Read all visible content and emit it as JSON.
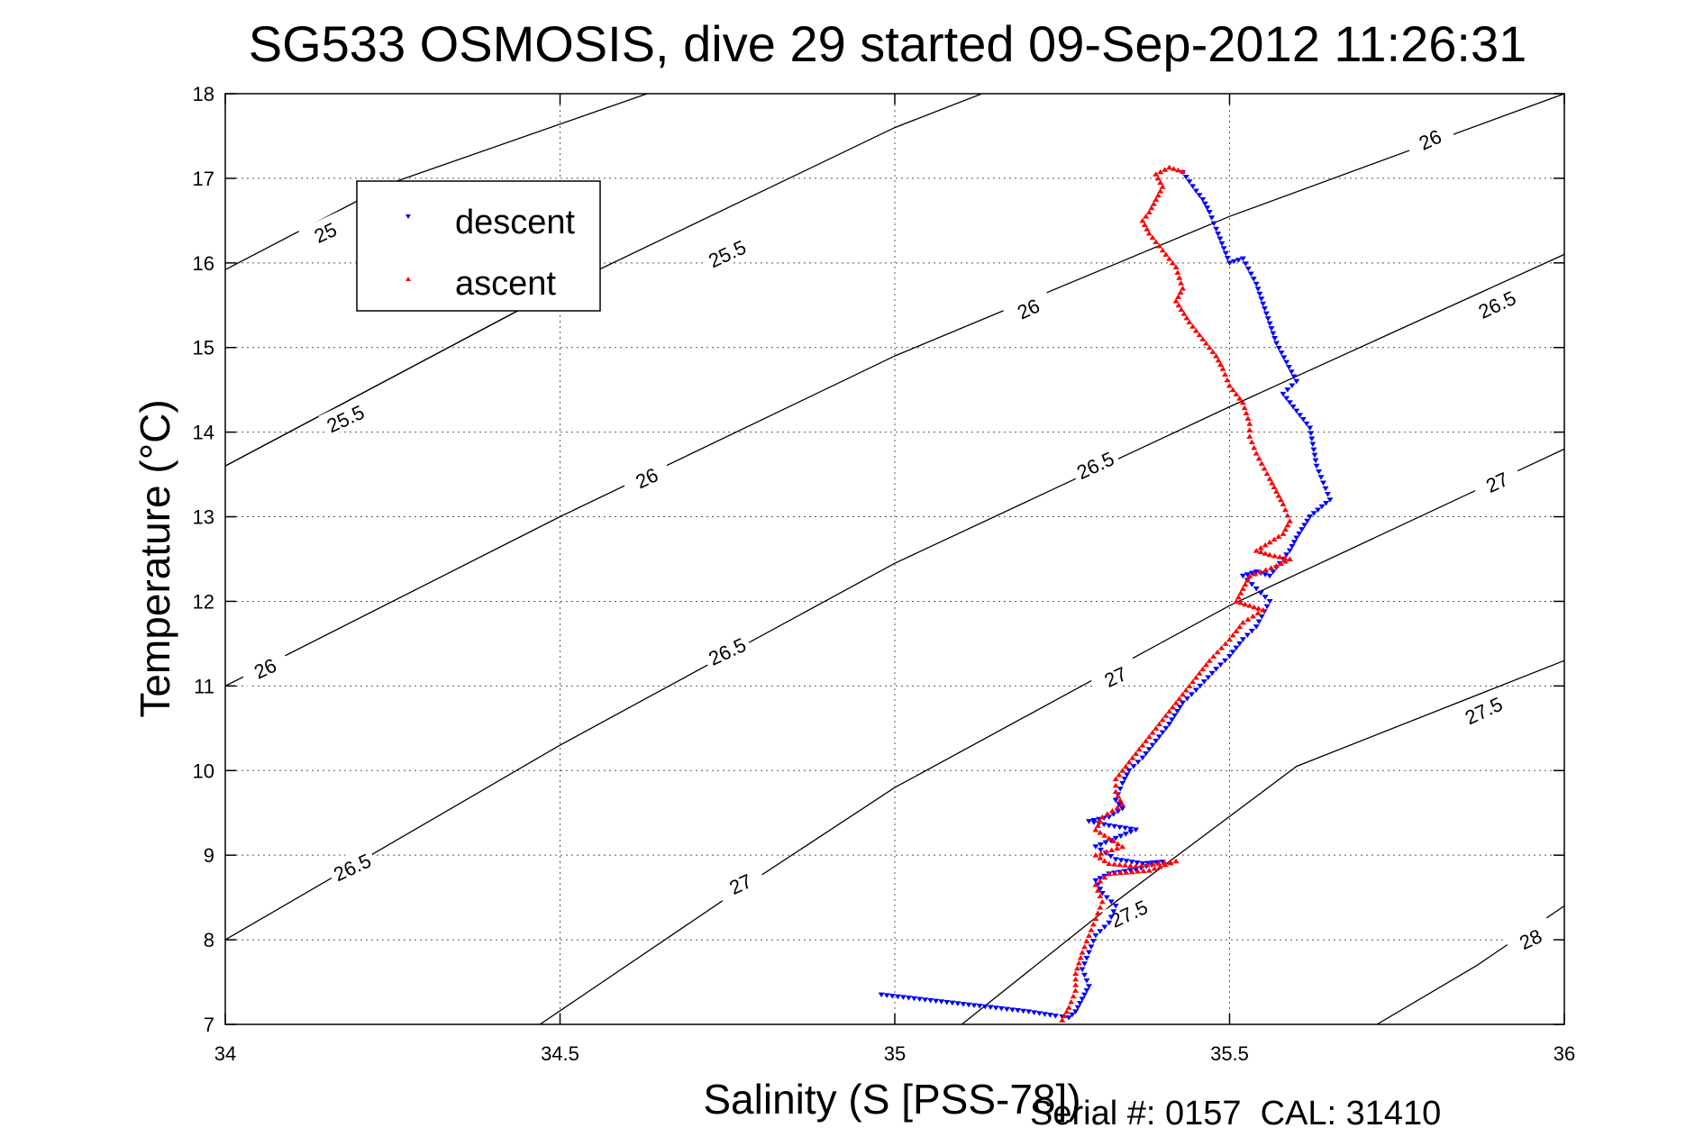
{
  "chart_data": {
    "type": "scatter",
    "title": "SG533 OSMOSIS, dive 29 started 09-Sep-2012 11:26:31",
    "xlabel": "Salinity (S [PSS-78])",
    "ylabel": "Temperature (°C)",
    "footer": "Serial #: 0157  CAL: 31410",
    "xlim": [
      34,
      36
    ],
    "ylim": [
      7,
      18
    ],
    "xticks": [
      34,
      34.5,
      35,
      35.5,
      36
    ],
    "xtick_labels": [
      "34",
      "34.5",
      "35",
      "35.5",
      "36"
    ],
    "yticks": [
      7,
      8,
      9,
      10,
      11,
      12,
      13,
      14,
      15,
      16,
      17,
      18
    ],
    "ytick_labels": [
      "7",
      "8",
      "9",
      "10",
      "11",
      "12",
      "13",
      "14",
      "15",
      "16",
      "17",
      "18"
    ],
    "grid": true,
    "legend_position": "top-left",
    "legend": [
      {
        "label": "descent",
        "marker": "down-triangle",
        "color": "#0000ff"
      },
      {
        "label": "ascent",
        "marker": "up-triangle",
        "color": "#ff0000"
      }
    ],
    "contours": [
      {
        "label": "25",
        "points": [
          [
            34,
            15.92
          ],
          [
            34.25,
            16.95
          ],
          [
            34.63,
            18.0
          ]
        ],
        "label_at": [
          34.15,
          16.35
        ]
      },
      {
        "label": "25.5",
        "points": [
          [
            34,
            13.6
          ],
          [
            34.5,
            15.7
          ],
          [
            35.0,
            17.6
          ],
          [
            35.13,
            18.0
          ]
        ],
        "label_at": [
          34.75,
          16.1
        ]
      },
      {
        "label": "25.5",
        "points": [
          [
            34,
            13.6
          ],
          [
            34.5,
            15.7
          ]
        ],
        "label_at": [
          34.18,
          14.15
        ]
      },
      {
        "label": "26",
        "points": [
          [
            34,
            11.0
          ],
          [
            34.5,
            13.0
          ],
          [
            35.0,
            14.9
          ],
          [
            35.5,
            16.55
          ],
          [
            36.0,
            18.0
          ]
        ],
        "label_at": [
          34.06,
          11.2
        ]
      },
      {
        "label": "26",
        "points": [],
        "label_at": [
          34.63,
          13.45
        ]
      },
      {
        "label": "26",
        "points": [],
        "label_at": [
          35.2,
          15.45
        ]
      },
      {
        "label": "26",
        "points": [],
        "label_at": [
          35.8,
          17.45
        ]
      },
      {
        "label": "26.5",
        "points": [
          [
            34,
            8.0
          ],
          [
            34.5,
            10.3
          ],
          [
            35.0,
            12.45
          ],
          [
            35.5,
            14.3
          ],
          [
            36.0,
            16.1
          ]
        ],
        "label_at": [
          34.19,
          8.85
        ]
      },
      {
        "label": "26.5",
        "points": [],
        "label_at": [
          34.75,
          11.4
        ]
      },
      {
        "label": "26.5",
        "points": [],
        "label_at": [
          35.3,
          13.6
        ]
      },
      {
        "label": "26.5",
        "points": [],
        "label_at": [
          35.9,
          15.5
        ]
      },
      {
        "label": "27",
        "points": [
          [
            34.47,
            7.0
          ],
          [
            34.75,
            8.5
          ],
          [
            35.0,
            9.8
          ],
          [
            35.5,
            11.95
          ],
          [
            36.0,
            13.8
          ]
        ],
        "label_at": [
          34.77,
          8.65
        ]
      },
      {
        "label": "27",
        "points": [],
        "label_at": [
          35.33,
          11.1
        ]
      },
      {
        "label": "27",
        "points": [],
        "label_at": [
          35.9,
          13.4
        ]
      },
      {
        "label": "27.5",
        "points": [
          [
            35.1,
            7.0
          ],
          [
            35.33,
            8.45
          ],
          [
            35.6,
            10.05
          ],
          [
            36.0,
            11.3
          ]
        ],
        "label_at": [
          35.35,
          8.3
        ]
      },
      {
        "label": "27.5",
        "points": [],
        "label_at": [
          35.88,
          10.7
        ]
      },
      {
        "label": "28",
        "points": [
          [
            35.72,
            7.0
          ],
          [
            35.87,
            7.7
          ],
          [
            36.0,
            8.4
          ]
        ],
        "label_at": [
          35.95,
          8.0
        ]
      }
    ],
    "series": [
      {
        "name": "descent",
        "points": [
          [
            35.43,
            17.07
          ],
          [
            35.45,
            16.85
          ],
          [
            35.46,
            16.75
          ],
          [
            35.47,
            16.6
          ],
          [
            35.48,
            16.4
          ],
          [
            35.5,
            16.0
          ],
          [
            35.52,
            16.05
          ],
          [
            35.54,
            15.75
          ],
          [
            35.57,
            15.05
          ],
          [
            35.6,
            14.6
          ],
          [
            35.58,
            14.45
          ],
          [
            35.62,
            14.05
          ],
          [
            35.63,
            13.6
          ],
          [
            35.64,
            13.4
          ],
          [
            35.65,
            13.2
          ],
          [
            35.62,
            13.0
          ],
          [
            35.6,
            12.75
          ],
          [
            35.59,
            12.6
          ],
          [
            35.57,
            12.4
          ],
          [
            35.56,
            12.3
          ],
          [
            35.54,
            12.35
          ],
          [
            35.52,
            12.3
          ],
          [
            35.54,
            12.15
          ],
          [
            35.56,
            12.0
          ],
          [
            35.54,
            11.7
          ],
          [
            35.52,
            11.55
          ],
          [
            35.5,
            11.35
          ],
          [
            35.48,
            11.2
          ],
          [
            35.45,
            10.95
          ],
          [
            35.43,
            10.8
          ],
          [
            35.41,
            10.55
          ],
          [
            35.39,
            10.35
          ],
          [
            35.37,
            10.15
          ],
          [
            35.35,
            10.0
          ],
          [
            35.34,
            9.85
          ],
          [
            35.33,
            9.65
          ],
          [
            35.34,
            9.55
          ],
          [
            35.32,
            9.45
          ],
          [
            35.29,
            9.4
          ],
          [
            35.32,
            9.35
          ],
          [
            35.36,
            9.3
          ],
          [
            35.33,
            9.2
          ],
          [
            35.3,
            9.1
          ],
          [
            35.33,
            8.95
          ],
          [
            35.37,
            8.9
          ],
          [
            35.4,
            8.92
          ],
          [
            35.36,
            8.83
          ],
          [
            35.32,
            8.78
          ],
          [
            35.3,
            8.7
          ],
          [
            35.31,
            8.55
          ],
          [
            35.33,
            8.4
          ],
          [
            35.32,
            8.2
          ],
          [
            35.3,
            8.05
          ],
          [
            35.29,
            7.85
          ],
          [
            35.28,
            7.65
          ],
          [
            35.29,
            7.45
          ],
          [
            35.28,
            7.3
          ],
          [
            35.27,
            7.15
          ],
          [
            35.26,
            7.08
          ],
          [
            35.24,
            7.1
          ],
          [
            35.2,
            7.15
          ],
          [
            34.98,
            7.35
          ]
        ]
      },
      {
        "name": "ascent",
        "points": [
          [
            35.43,
            17.08
          ],
          [
            35.41,
            17.13
          ],
          [
            35.39,
            17.05
          ],
          [
            35.4,
            16.9
          ],
          [
            35.39,
            16.75
          ],
          [
            35.38,
            16.6
          ],
          [
            35.37,
            16.5
          ],
          [
            35.38,
            16.35
          ],
          [
            35.42,
            15.95
          ],
          [
            35.43,
            15.7
          ],
          [
            35.42,
            15.55
          ],
          [
            35.44,
            15.3
          ],
          [
            35.46,
            15.1
          ],
          [
            35.48,
            14.9
          ],
          [
            35.49,
            14.75
          ],
          [
            35.5,
            14.55
          ],
          [
            35.52,
            14.35
          ],
          [
            35.53,
            14.1
          ],
          [
            35.53,
            13.95
          ],
          [
            35.54,
            13.75
          ],
          [
            35.56,
            13.45
          ],
          [
            35.57,
            13.3
          ],
          [
            35.58,
            13.15
          ],
          [
            35.59,
            12.95
          ],
          [
            35.58,
            12.8
          ],
          [
            35.56,
            12.7
          ],
          [
            35.54,
            12.6
          ],
          [
            35.56,
            12.55
          ],
          [
            35.59,
            12.5
          ],
          [
            35.57,
            12.42
          ],
          [
            35.53,
            12.3
          ],
          [
            35.52,
            12.15
          ],
          [
            35.51,
            12.0
          ],
          [
            35.53,
            11.95
          ],
          [
            35.55,
            11.9
          ],
          [
            35.52,
            11.75
          ],
          [
            35.5,
            11.55
          ],
          [
            35.47,
            11.3
          ],
          [
            35.45,
            11.1
          ],
          [
            35.43,
            10.9
          ],
          [
            35.41,
            10.7
          ],
          [
            35.39,
            10.5
          ],
          [
            35.37,
            10.3
          ],
          [
            35.35,
            10.1
          ],
          [
            35.33,
            9.9
          ],
          [
            35.33,
            9.75
          ],
          [
            35.34,
            9.6
          ],
          [
            35.31,
            9.45
          ],
          [
            35.3,
            9.3
          ],
          [
            35.32,
            9.2
          ],
          [
            35.34,
            9.1
          ],
          [
            35.3,
            9.0
          ],
          [
            35.32,
            8.9
          ],
          [
            35.36,
            8.87
          ],
          [
            35.42,
            8.93
          ],
          [
            35.38,
            8.82
          ],
          [
            35.32,
            8.78
          ],
          [
            35.3,
            8.65
          ],
          [
            35.31,
            8.45
          ],
          [
            35.3,
            8.25
          ],
          [
            35.29,
            8.05
          ],
          [
            35.28,
            7.85
          ],
          [
            35.27,
            7.6
          ],
          [
            35.27,
            7.4
          ],
          [
            35.26,
            7.2
          ],
          [
            35.25,
            7.05
          ]
        ]
      }
    ]
  }
}
